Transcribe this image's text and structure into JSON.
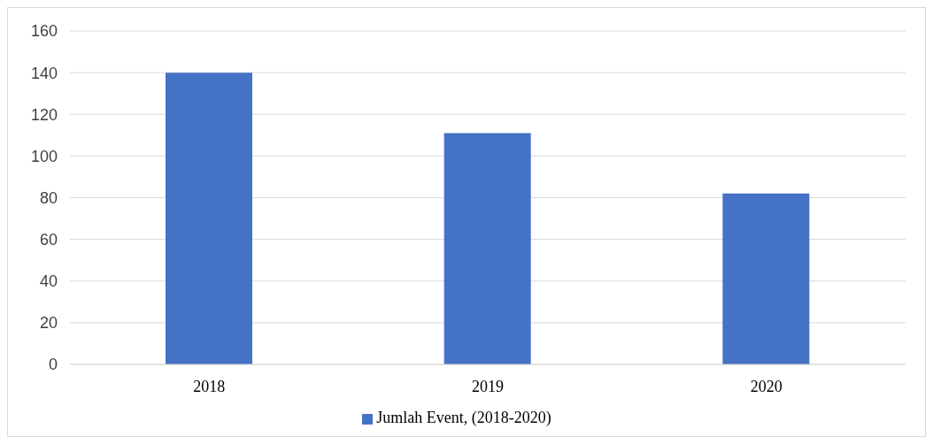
{
  "chart_data": {
    "type": "bar",
    "categories": [
      "2018",
      "2019",
      "2020"
    ],
    "series": [
      {
        "name": "Jumlah Event, (2018-2020)",
        "color": "#4472c4",
        "values": [
          140,
          111,
          82
        ]
      }
    ],
    "ylim": [
      0,
      160
    ],
    "yticks": [
      0,
      20,
      40,
      60,
      80,
      100,
      120,
      140,
      160
    ],
    "grid": "y",
    "legend": "bottom"
  }
}
